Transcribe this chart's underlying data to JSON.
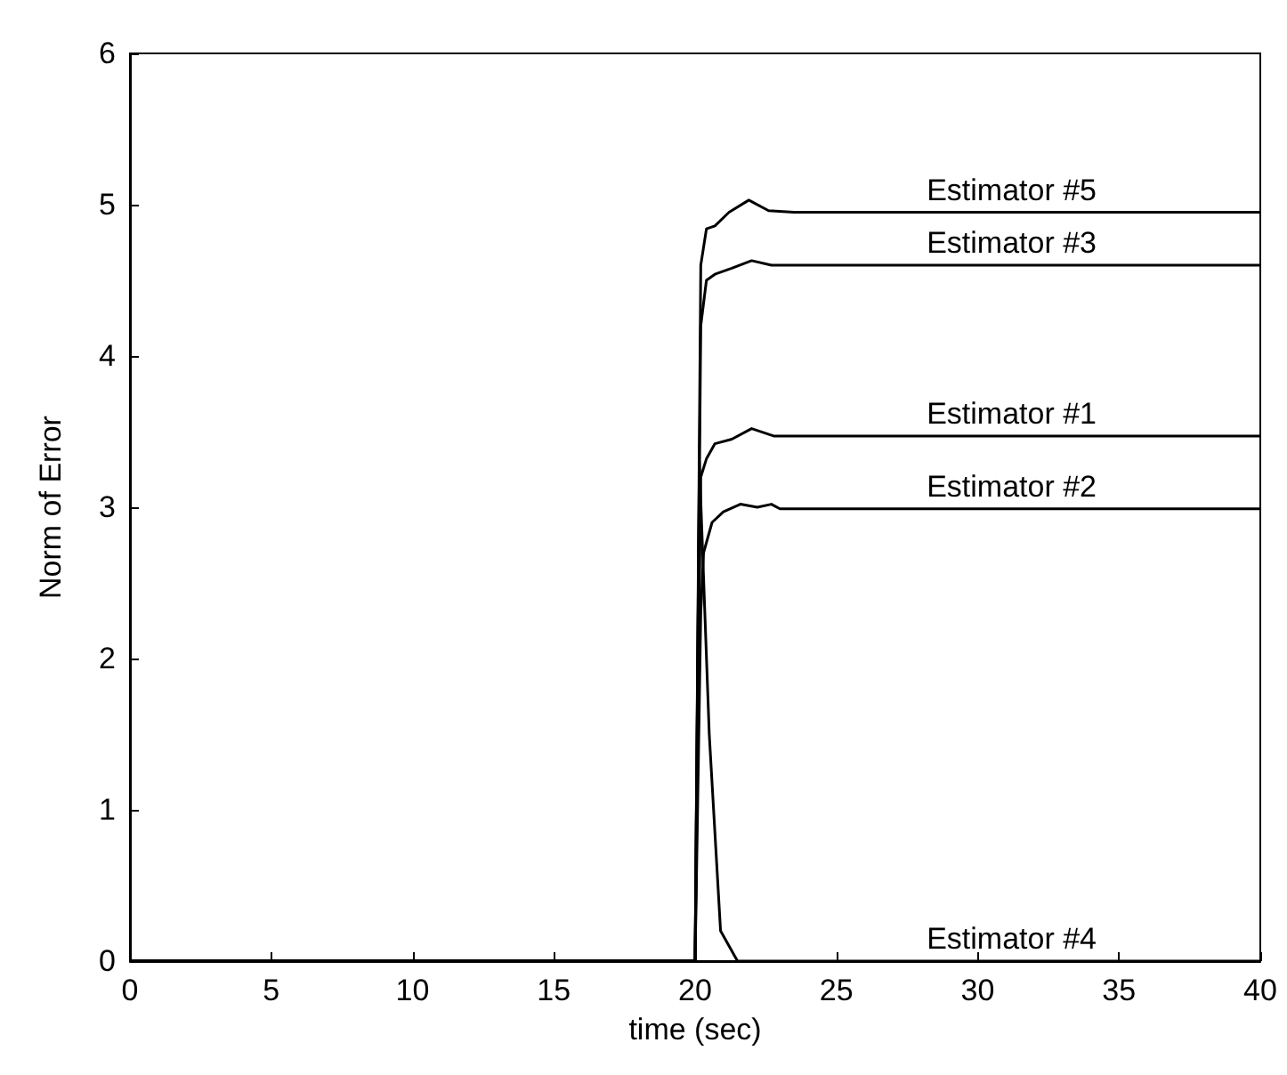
{
  "chart_data": {
    "type": "line",
    "xlabel": "time (sec)",
    "ylabel": "Norm of Error",
    "xlim": [
      0,
      40
    ],
    "xticks": [
      0,
      5,
      10,
      15,
      20,
      25,
      30,
      35,
      40
    ],
    "ylim": [
      0,
      6
    ],
    "yticks": [
      0,
      1,
      2,
      3,
      4,
      5,
      6
    ],
    "grid": false,
    "legend": false,
    "marker": "none",
    "line_style": "solid",
    "series": [
      {
        "name": "Estimator #5",
        "color": "#000000",
        "x": [
          0,
          20,
          20.2,
          20.4,
          20.7,
          21.2,
          21.9,
          22.6,
          23.5,
          40
        ],
        "values": [
          0,
          0,
          4.6,
          4.84,
          4.86,
          4.95,
          5.03,
          4.96,
          4.95,
          4.95
        ]
      },
      {
        "name": "Estimator #3",
        "color": "#000000",
        "x": [
          0,
          20,
          20.2,
          20.4,
          20.7,
          21.3,
          22.0,
          22.7,
          23.5,
          40
        ],
        "values": [
          0,
          0,
          4.2,
          4.5,
          4.54,
          4.58,
          4.63,
          4.6,
          4.6,
          4.6
        ]
      },
      {
        "name": "Estimator #1",
        "color": "#000000",
        "x": [
          0,
          20,
          20.2,
          20.4,
          20.7,
          21.3,
          22.0,
          22.8,
          40
        ],
        "values": [
          0,
          0,
          3.2,
          3.32,
          3.42,
          3.45,
          3.52,
          3.47,
          3.47
        ]
      },
      {
        "name": "Estimator #2",
        "color": "#000000",
        "x": [
          0,
          20,
          20.2,
          20.3,
          20.6,
          21.0,
          21.6,
          22.2,
          22.7,
          23.0,
          40
        ],
        "values": [
          0,
          0,
          2.3,
          2.7,
          2.9,
          2.97,
          3.02,
          3.0,
          3.02,
          2.99,
          2.99
        ]
      },
      {
        "name": "Estimator #4",
        "color": "#000000",
        "x": [
          0,
          20,
          20.15,
          20.5,
          20.9,
          21.5,
          40
        ],
        "values": [
          0,
          0,
          3.3,
          1.5,
          0.2,
          0,
          0
        ]
      }
    ]
  }
}
